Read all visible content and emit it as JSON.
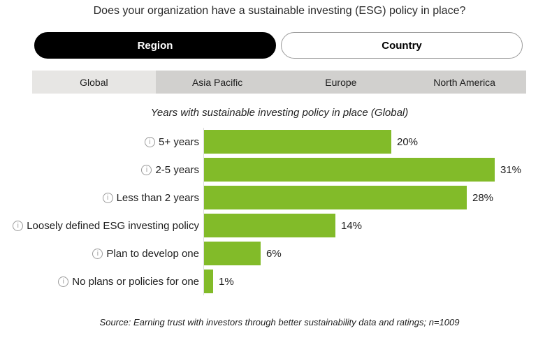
{
  "page": {
    "title": "Does your organization have a sustainable investing (ESG) policy in place?"
  },
  "toggle": {
    "region_label": "Region",
    "country_label": "Country",
    "selected": "Region"
  },
  "tabs": {
    "items": [
      {
        "label": "Global",
        "selected": true
      },
      {
        "label": "Asia Pacific",
        "selected": false
      },
      {
        "label": "Europe",
        "selected": false
      },
      {
        "label": "North America",
        "selected": false
      }
    ]
  },
  "chart_data": {
    "type": "bar",
    "orientation": "horizontal",
    "title": "Years with sustainable investing policy in place (Global)",
    "categories": [
      "5+ years",
      "2-5 years",
      "Less than 2 years",
      "Loosely defined ESG investing policy",
      "Plan to develop one",
      "No plans or policies for one"
    ],
    "values": [
      20,
      31,
      28,
      14,
      6,
      1
    ],
    "value_labels": [
      "20%",
      "31%",
      "28%",
      "14%",
      "6%",
      "1%"
    ],
    "unit": "%",
    "xlim": [
      0,
      31
    ],
    "bar_color": "#82bb29",
    "axis_color": "#dcdcdc",
    "grid": "off",
    "legend": "none"
  },
  "source": {
    "text": "Source: Earning trust with investors through better sustainability data and ratings; n=1009"
  },
  "colors": {
    "accent_green": "#82bb29",
    "toggle_selected_bg": "#000000",
    "tab_selected_bg": "#e7e6e4",
    "tab_unselected_bg": "#d1d0ce"
  },
  "icons": {
    "info": "i"
  }
}
